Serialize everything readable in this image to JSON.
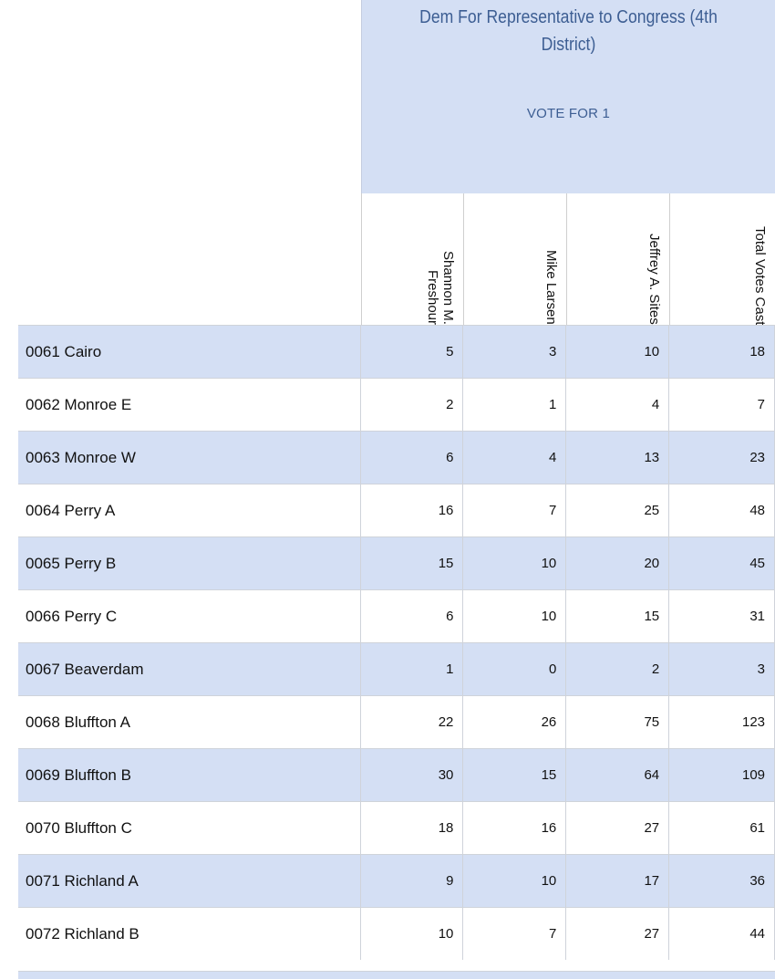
{
  "race": {
    "title_line1": "Dem For Representative to Congress (4th",
    "title_line2": "District)",
    "vote_for": "VOTE FOR 1"
  },
  "candidates": [
    "Shannon M. Freshour",
    "Mike Larsen",
    "Jeffrey A. Sites",
    "Total Votes Cast"
  ],
  "precincts": [
    {
      "name": "0061 Cairo",
      "values": [
        "5",
        "3",
        "10",
        "18"
      ]
    },
    {
      "name": "0062 Monroe E",
      "values": [
        "2",
        "1",
        "4",
        "7"
      ]
    },
    {
      "name": "0063 Monroe W",
      "values": [
        "6",
        "4",
        "13",
        "23"
      ]
    },
    {
      "name": "0064 Perry A",
      "values": [
        "16",
        "7",
        "25",
        "48"
      ]
    },
    {
      "name": "0065 Perry B",
      "values": [
        "15",
        "10",
        "20",
        "45"
      ]
    },
    {
      "name": "0066 Perry C",
      "values": [
        "6",
        "10",
        "15",
        "31"
      ]
    },
    {
      "name": "0067 Beaverdam",
      "values": [
        "1",
        "0",
        "2",
        "3"
      ]
    },
    {
      "name": "0068 Bluffton A",
      "values": [
        "22",
        "26",
        "75",
        "123"
      ]
    },
    {
      "name": "0069 Bluffton B",
      "values": [
        "30",
        "15",
        "64",
        "109"
      ]
    },
    {
      "name": "0070 Bluffton C",
      "values": [
        "18",
        "16",
        "27",
        "61"
      ]
    },
    {
      "name": "0071 Richland A",
      "values": [
        "9",
        "10",
        "17",
        "36"
      ]
    },
    {
      "name": "0072 Richland B",
      "values": [
        "10",
        "7",
        "27",
        "44"
      ]
    }
  ],
  "colors": {
    "header_bg": "#d4dff4",
    "header_text": "#3d5e93",
    "row_shaded": "#d4dff4",
    "row_white": "#ffffff"
  }
}
